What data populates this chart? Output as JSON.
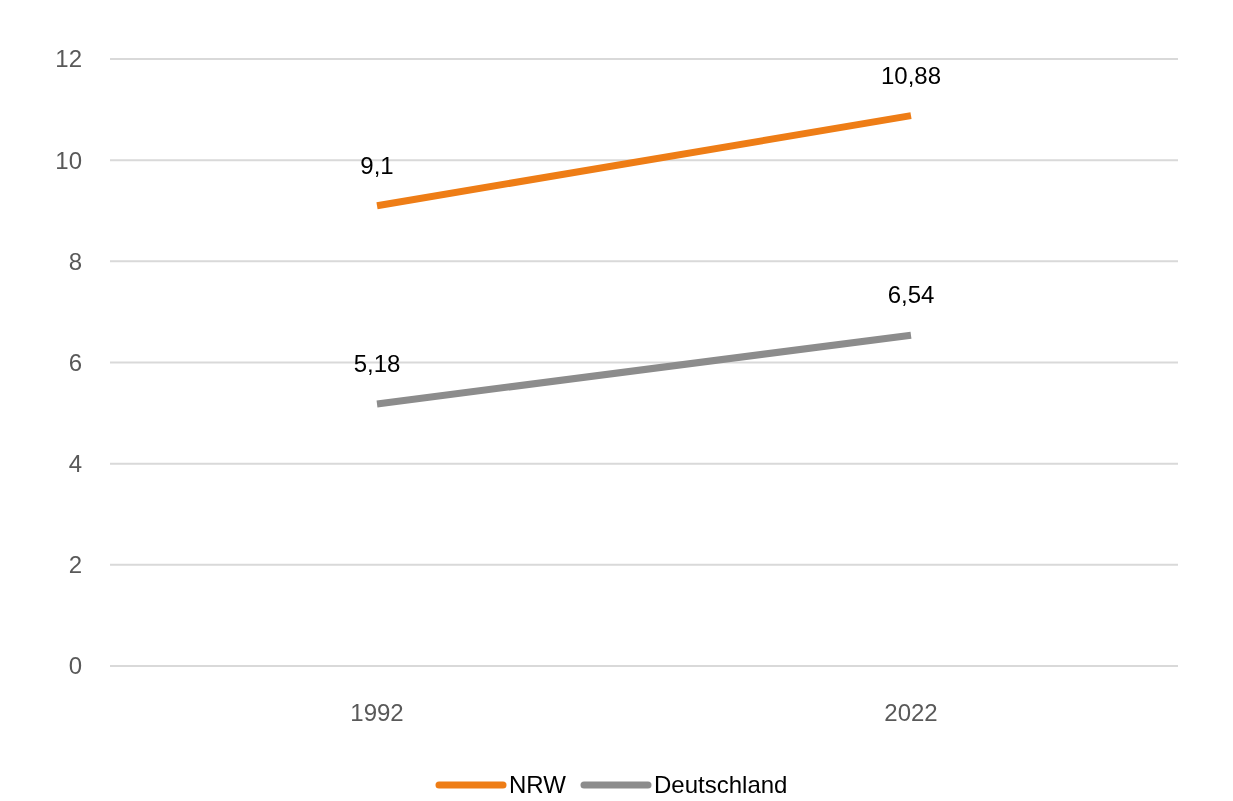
{
  "chart_data": {
    "type": "line",
    "categories": [
      "1992",
      "2022"
    ],
    "series": [
      {
        "name": "NRW",
        "color": "#ee7d16",
        "values": [
          9.1,
          10.88
        ],
        "value_labels": [
          "9,1",
          "10,88"
        ]
      },
      {
        "name": "Deutschland",
        "color": "#8c8c8c",
        "values": [
          5.18,
          6.54
        ],
        "value_labels": [
          "5,18",
          "6,54"
        ]
      }
    ],
    "ylim": [
      0,
      12
    ],
    "yticks": [
      0,
      2,
      4,
      6,
      8,
      10,
      12
    ],
    "grid": "y",
    "legend": "bottom",
    "marker": "none",
    "line_style": "solid"
  }
}
